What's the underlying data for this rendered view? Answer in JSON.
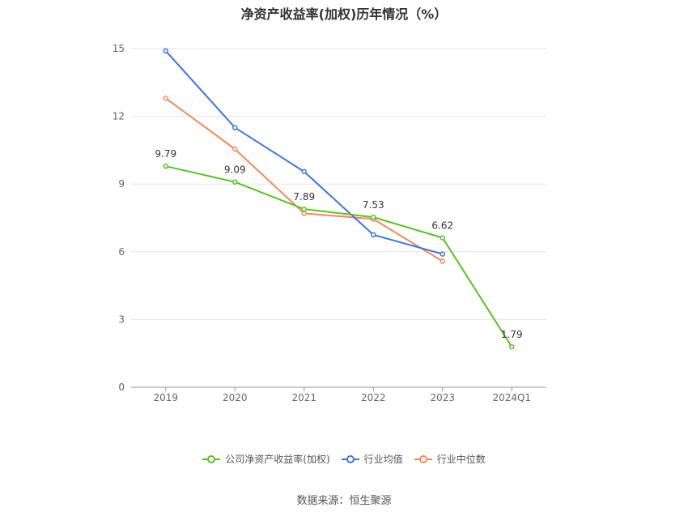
{
  "chart_data": {
    "type": "line",
    "title": "净资产收益率(加权)历年情况（%）",
    "categories": [
      "2019",
      "2020",
      "2021",
      "2022",
      "2023",
      "2024Q1"
    ],
    "ylim": [
      0,
      15
    ],
    "yticks": [
      0,
      3,
      6,
      9,
      12,
      15
    ],
    "grid": true,
    "legend_placement": "bottom",
    "series": [
      {
        "name": "公司净资产收益率(加权)",
        "color": "#5bc02b",
        "values": [
          9.79,
          9.09,
          7.89,
          7.53,
          6.62,
          1.79
        ],
        "labels": [
          "9.79",
          "9.09",
          "7.89",
          "7.53",
          "6.62",
          "1.79"
        ]
      },
      {
        "name": "行业均值",
        "color": "#3e75db",
        "values": [
          14.9,
          11.5,
          9.55,
          6.75,
          5.9,
          null
        ]
      },
      {
        "name": "行业中位数",
        "color": "#f08a5d",
        "values": [
          12.8,
          10.55,
          7.7,
          7.45,
          5.58,
          null
        ]
      }
    ]
  },
  "footer": {
    "source": "数据来源：恒生聚源"
  }
}
